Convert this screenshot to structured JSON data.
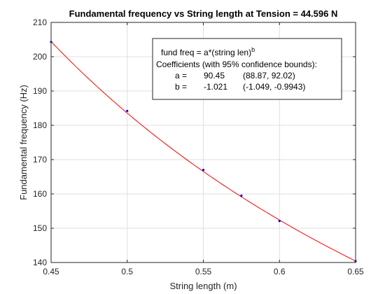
{
  "chart_data": {
    "type": "scatter",
    "title": "Fundamental frequency vs String length at Tension = 44.596 N",
    "xlabel": "String length (m)",
    "ylabel": "Fundamental frequency (Hz)",
    "xlim": [
      0.45,
      0.65
    ],
    "ylim": [
      140,
      210
    ],
    "xticks": [
      0.45,
      0.5,
      0.55,
      0.6,
      0.65
    ],
    "yticks": [
      140,
      150,
      160,
      170,
      180,
      190,
      200,
      210
    ],
    "xtick_labels": [
      "0.45",
      "0.5",
      "0.55",
      "0.6",
      "0.65"
    ],
    "ytick_labels": [
      "140",
      "150",
      "160",
      "170",
      "180",
      "190",
      "200",
      "210"
    ],
    "grid": true,
    "series": [
      {
        "type": "scatter",
        "color": "#0000ff",
        "x": [
          0.45,
          0.5,
          0.55,
          0.575,
          0.6,
          0.65
        ],
        "y": [
          204.3,
          184.2,
          167.0,
          159.5,
          152.1,
          140.4
        ]
      },
      {
        "type": "line",
        "color": "#ff0000",
        "fit": {
          "model": "a*x^b",
          "a": 90.45,
          "b": -1.021
        }
      }
    ],
    "annotation": {
      "placement": "top-right",
      "line1": "fund freq = a*(string len)",
      "line1_sup": "b",
      "line2": "Coefficients (with 95% confidence bounds):",
      "rows": [
        {
          "name": "a =",
          "value": "90.45",
          "bounds": "(88.87, 92.02)"
        },
        {
          "name": "b =",
          "value": "-1.021",
          "bounds": "(-1.049, -0.9943)"
        }
      ]
    }
  }
}
